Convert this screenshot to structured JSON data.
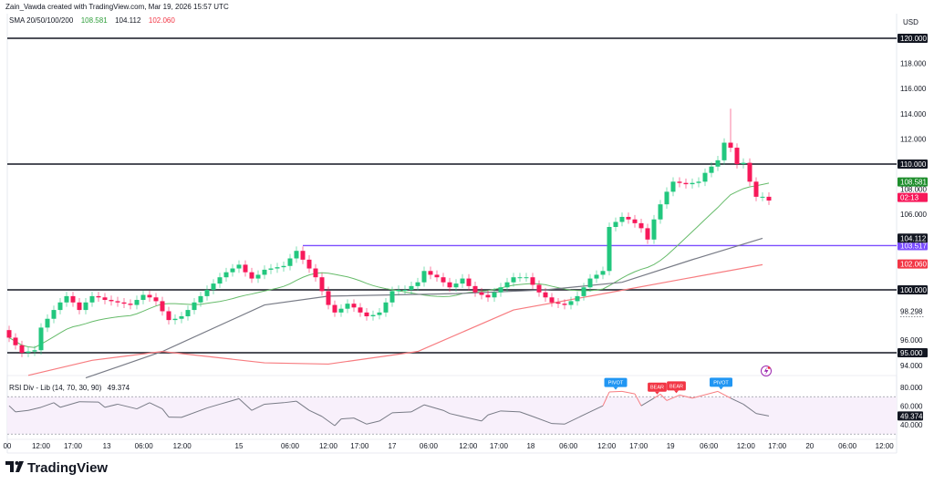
{
  "header": {
    "attribution": "Zain_Vawda created with TradingView.com, Mar 19, 2026 15:57 UTC",
    "indicator_label": "SMA 20/50/100/200",
    "sma_values": [
      "108.581",
      "104.112",
      "102.060"
    ],
    "sma_colors": [
      "#2e9e3a",
      "#131722",
      "#f23645"
    ]
  },
  "logo": {
    "text": "TradingView"
  },
  "chart_data": {
    "type": "candlestick",
    "currency": "USD",
    "ylim": [
      93.5,
      121.5
    ],
    "price_ticks": [
      "118.000",
      "116.000",
      "114.000",
      "112.000",
      "108.000",
      "106.000",
      "96.000",
      "94.000"
    ],
    "price_tick_values": [
      118,
      116,
      114,
      112,
      108,
      106,
      96,
      94
    ],
    "candles": {
      "first_open": 96.8,
      "session_high": 114.4,
      "session_high_bar": 113,
      "close": [
        96.2,
        95.6,
        95.0,
        95.1,
        95.2,
        97.0,
        97.7,
        98.4,
        99.0,
        99.5,
        99.0,
        98.4,
        99.0,
        99.5,
        99.4,
        99.2,
        99.1,
        99.0,
        98.9,
        98.8,
        99.2,
        99.6,
        99.4,
        99.1,
        98.3,
        97.6,
        97.7,
        97.9,
        98.4,
        99.0,
        99.5,
        100.0,
        100.5,
        101.0,
        101.4,
        101.7,
        102.0,
        101.4,
        100.9,
        101.2,
        101.6,
        101.7,
        101.8,
        101.9,
        102.5,
        103.1,
        102.4,
        101.7,
        101.0,
        99.9,
        98.8,
        98.2,
        98.5,
        98.9,
        98.6,
        98.2,
        97.9,
        98.0,
        98.2,
        99.0,
        99.9,
        100.0,
        100.0,
        100.3,
        100.6,
        101.5,
        101.2,
        101.0,
        100.6,
        100.2,
        100.5,
        100.9,
        100.3,
        99.8,
        99.6,
        99.4,
        99.8,
        100.2,
        100.6,
        101.0,
        101.0,
        101.0,
        100.4,
        99.8,
        99.4,
        99.0,
        98.9,
        98.8,
        99.1,
        99.5,
        100.2,
        100.9,
        101.2,
        101.5,
        105.0,
        105.4,
        105.8,
        105.6,
        105.3,
        104.9,
        104.0,
        105.6,
        106.8,
        107.8,
        108.6,
        108.5,
        108.4,
        108.5,
        108.6,
        109.3,
        109.8,
        110.3,
        111.7,
        111.3,
        110.0,
        110.1,
        108.6,
        107.4,
        107.4,
        107.1
      ],
      "up_color": "#22c77e",
      "down_color": "#f7195a"
    },
    "moving_averages": [
      {
        "period": 20,
        "color": "#66bb6a",
        "last": 108.581
      },
      {
        "period": 50,
        "color": "#787b86",
        "last": 104.112,
        "points": [
          [
            12,
            93.0
          ],
          [
            24,
            95.1
          ],
          [
            40,
            98.8
          ],
          [
            50,
            99.5
          ],
          [
            70,
            99.7
          ],
          [
            84,
            100.0
          ],
          [
            96,
            100.6
          ],
          [
            107,
            102.4
          ],
          [
            118,
            104.1
          ]
        ]
      },
      {
        "period": 100,
        "color": "#f77c80",
        "last": 102.06,
        "points": [
          [
            3,
            93.2
          ],
          [
            13,
            94.4
          ],
          [
            24,
            95.1
          ],
          [
            40,
            94.2
          ],
          [
            50,
            94.1
          ],
          [
            64,
            95.1
          ],
          [
            79,
            98.4
          ],
          [
            91,
            99.5
          ],
          [
            106,
            100.9
          ],
          [
            118,
            102.0
          ]
        ]
      }
    ],
    "horizontal_levels": [
      {
        "value": 120,
        "label": "120.000",
        "color": "#131722"
      },
      {
        "value": 110,
        "label": "110.000",
        "color": "#131722"
      },
      {
        "value": 100,
        "label": "100.000",
        "color": "#131722"
      },
      {
        "value": 95,
        "label": "95.000",
        "color": "#131722"
      },
      {
        "value": 103.517,
        "label": "103.517",
        "color": "#7b4dff",
        "from_bar": 46
      }
    ],
    "price_labels": [
      {
        "value": 108.581,
        "label": "108.581",
        "color": "#1e8e2c"
      },
      {
        "value": 107.35,
        "label": "02:13",
        "color": "#f7195a"
      },
      {
        "value": 104.112,
        "label": "104.112",
        "color": "#131722"
      },
      {
        "value": 102.06,
        "label": "102.060",
        "color": "#f23645"
      }
    ],
    "crosshair_label": {
      "value": 98.298,
      "label": "98.298"
    },
    "time_ticks": [
      [
        "00",
        -0.3
      ],
      [
        "12:00",
        5
      ],
      [
        "17:00",
        10
      ],
      [
        "13",
        15.3
      ],
      [
        "06:00",
        21.1
      ],
      [
        "12:00",
        27.1
      ],
      [
        "15",
        36
      ],
      [
        "06:00",
        44
      ],
      [
        "12:00",
        50
      ],
      [
        "17:00",
        54.9
      ],
      [
        "17",
        60
      ],
      [
        "06:00",
        65.7
      ],
      [
        "12:00",
        71.9
      ],
      [
        "17:00",
        76.7
      ],
      [
        "18",
        81.7
      ],
      [
        "06:00",
        87.6
      ],
      [
        "12:00",
        93.6
      ],
      [
        "17:00",
        98.6
      ],
      [
        "19",
        103.6
      ],
      [
        "06:00",
        109.6
      ],
      [
        "12:00",
        115.4
      ],
      [
        "17:00",
        120.3
      ],
      [
        "20",
        125.4
      ],
      [
        "06:00",
        131.3
      ],
      [
        "12:00",
        137.1
      ]
    ],
    "rsi": {
      "label": "RSI Div - Lib (14, 70, 30, 90)",
      "value": "49.374",
      "last": 49.374,
      "ticks": [
        "80.000",
        "60.000",
        "40.000"
      ],
      "tick_values": [
        80,
        60,
        40
      ],
      "overbought": 70,
      "oversold": 30,
      "line_color": "#787b86",
      "overbought_color": "#f77c80",
      "points": [
        [
          0,
          60.3
        ],
        [
          1,
          53.8
        ],
        [
          3,
          55.4
        ],
        [
          5,
          58.7
        ],
        [
          7,
          63.6
        ],
        [
          8,
          58.7
        ],
        [
          11,
          64.6
        ],
        [
          14,
          64.3
        ],
        [
          15,
          58.7
        ],
        [
          17,
          62
        ],
        [
          20,
          57
        ],
        [
          22,
          63.6
        ],
        [
          24,
          57
        ],
        [
          25,
          48.2
        ],
        [
          27,
          47.9
        ],
        [
          31,
          58
        ],
        [
          33,
          62
        ],
        [
          36,
          67.9
        ],
        [
          38,
          55.4
        ],
        [
          40,
          62
        ],
        [
          43,
          63.6
        ],
        [
          45,
          65.2
        ],
        [
          47,
          55.4
        ],
        [
          49,
          48.9
        ],
        [
          51,
          39
        ],
        [
          52,
          46.2
        ],
        [
          54,
          47.2
        ],
        [
          56,
          40.7
        ],
        [
          58,
          44
        ],
        [
          60,
          52.8
        ],
        [
          63,
          53.8
        ],
        [
          65,
          61.3
        ],
        [
          68,
          55.4
        ],
        [
          69,
          52
        ],
        [
          72,
          47.2
        ],
        [
          74,
          44
        ],
        [
          75,
          50.5
        ],
        [
          77,
          54.8
        ],
        [
          80,
          53.8
        ],
        [
          82,
          48.9
        ],
        [
          85,
          41.3
        ],
        [
          87,
          40.7
        ],
        [
          91,
          53.8
        ],
        [
          93,
          60.3
        ],
        [
          94,
          75.1
        ],
        [
          96,
          75.7
        ],
        [
          98,
          73.1
        ],
        [
          99,
          60.3
        ],
        [
          101,
          68.5
        ],
        [
          102,
          72.8
        ],
        [
          103,
          65.9
        ],
        [
          105,
          71.8
        ],
        [
          107,
          68.5
        ],
        [
          111,
          75.7
        ],
        [
          113,
          68.5
        ],
        [
          115,
          62
        ],
        [
          117,
          52.1
        ],
        [
          119,
          49.4
        ]
      ],
      "markers": [
        {
          "label": "PIVOT",
          "bar": 95,
          "value": 75.5,
          "color": "#2196f3"
        },
        {
          "label": "BEAR",
          "bar": 101.5,
          "value": 70.5,
          "color": "#f23645"
        },
        {
          "label": "BEAR",
          "bar": 104.5,
          "value": 71.8,
          "color": "#f23645"
        },
        {
          "label": "PIVOT",
          "bar": 111.5,
          "value": 75.7,
          "color": "#2196f3"
        }
      ]
    }
  },
  "icons": {
    "alert": "lightning-icon"
  }
}
